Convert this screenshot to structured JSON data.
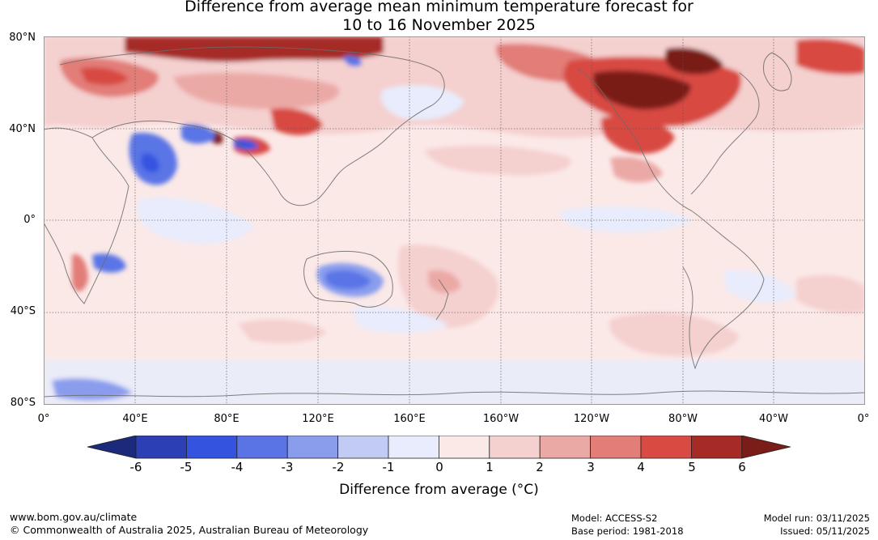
{
  "title": {
    "line1": "Difference from average mean minimum temperature forecast for",
    "line2": "10 to 16 November 2025"
  },
  "map": {
    "lat_labels": [
      "80°N",
      "40°N",
      "0°",
      "40°S",
      "80°S"
    ],
    "lon_labels": [
      "0°",
      "40°E",
      "80°E",
      "120°E",
      "160°E",
      "160°W",
      "120°W",
      "80°W",
      "40°W",
      "0°"
    ],
    "anomaly_regions": [
      {
        "region": "Siberia / Arctic Asia",
        "anomaly": 5
      },
      {
        "region": "Northern Canada",
        "anomaly": 6
      },
      {
        "region": "Central North America",
        "anomaly": 4
      },
      {
        "region": "Northern Europe",
        "anomaly": 4
      },
      {
        "region": "Arabia",
        "anomaly": -3
      },
      {
        "region": "Tibet / Central Asia",
        "anomaly": -2
      },
      {
        "region": "Central Australia",
        "anomaly": -2
      },
      {
        "region": "Southern Africa",
        "anomaly": -2
      },
      {
        "region": "Equatorial East Pacific",
        "anomaly": -1
      },
      {
        "region": "South Pacific",
        "anomaly": 2
      },
      {
        "region": "Antarctica coast",
        "anomaly": -1
      }
    ]
  },
  "colorbar": {
    "ticks": [
      "-6",
      "-5",
      "-4",
      "-3",
      "-2",
      "-1",
      "0",
      "1",
      "2",
      "3",
      "4",
      "5",
      "6"
    ],
    "colors": [
      "#1b2a7a",
      "#2c3fb5",
      "#3454e0",
      "#5a74e6",
      "#8a9ded",
      "#c2cbf4",
      "#e8ecfc",
      "#fbe9e8",
      "#f4d0cf",
      "#eba9a6",
      "#e27d78",
      "#d84a42",
      "#a62a25",
      "#7a1c18"
    ],
    "label": "Difference from average (°C)"
  },
  "footer": {
    "website": "www.bom.gov.au/climate",
    "copyright": "© Commonwealth of Australia 2025, Australian Bureau of Meteorology",
    "model": "Model: ACCESS-S2",
    "base_period": "Base period: 1981-2018",
    "model_run": "Model run: 03/11/2025",
    "issued": "Issued: 05/11/2025"
  }
}
